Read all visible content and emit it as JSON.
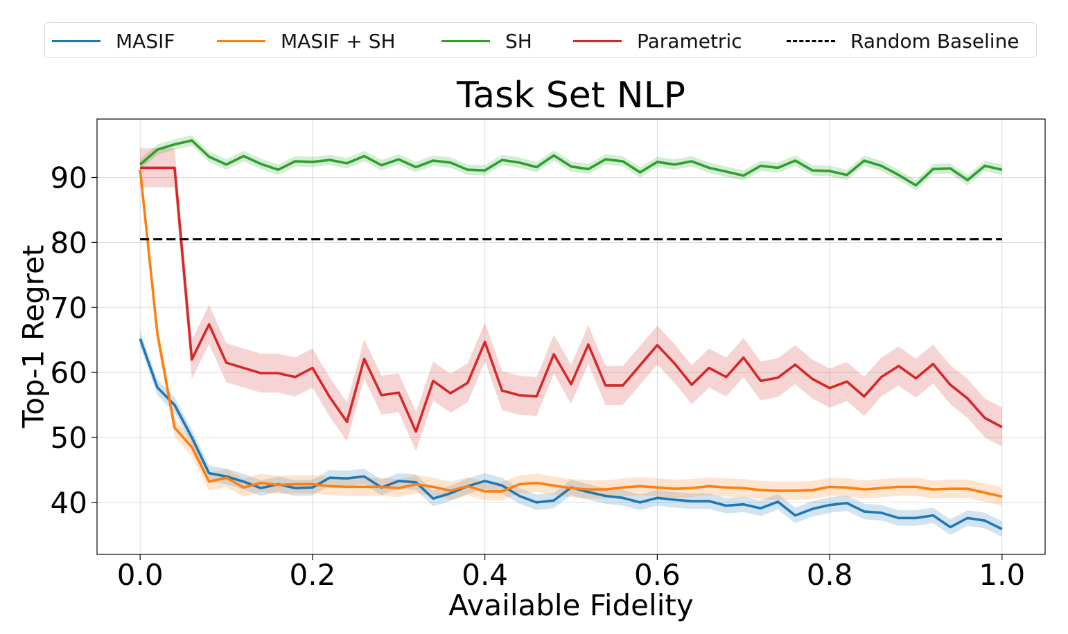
{
  "chart_data": {
    "type": "line",
    "title": "Task Set NLP",
    "xlabel": "Available Fidelity",
    "ylabel": "Top-1 Regret",
    "xlim": [
      -0.05,
      1.05
    ],
    "ylim": [
      32,
      99
    ],
    "x_ticks": [
      "0.0",
      "0.2",
      "0.4",
      "0.6",
      "0.8",
      "1.0"
    ],
    "y_ticks": [
      "40",
      "50",
      "60",
      "70",
      "80",
      "90"
    ],
    "grid": true,
    "legend_position": "top",
    "x": [
      0.0,
      0.02,
      0.04,
      0.06,
      0.08,
      0.1,
      0.12,
      0.14,
      0.16,
      0.18,
      0.2,
      0.22,
      0.24,
      0.26,
      0.28,
      0.3,
      0.32,
      0.34,
      0.36,
      0.38,
      0.4,
      0.42,
      0.44,
      0.46,
      0.48,
      0.5,
      0.52,
      0.54,
      0.56,
      0.58,
      0.6,
      0.62,
      0.64,
      0.66,
      0.68,
      0.7,
      0.72,
      0.74,
      0.76,
      0.78,
      0.8,
      0.82,
      0.84,
      0.86,
      0.88,
      0.9,
      0.92,
      0.94,
      0.96,
      0.98,
      1.0
    ],
    "series": [
      {
        "name": "MASIF",
        "color": "#1f77b4",
        "style": "solid",
        "band": 1.2,
        "values": [
          65.2,
          57.7,
          55.0,
          50.0,
          44.5,
          44.0,
          43.2,
          42.2,
          42.8,
          42.2,
          42.3,
          43.8,
          43.7,
          44.0,
          42.3,
          43.3,
          43.1,
          40.6,
          41.4,
          42.5,
          43.3,
          42.6,
          41.0,
          40.0,
          40.3,
          42.3,
          41.6,
          41.0,
          40.7,
          40.0,
          40.7,
          40.4,
          40.2,
          40.2,
          39.5,
          39.7,
          39.1,
          40.1,
          38.0,
          39.0,
          39.6,
          39.9,
          38.6,
          38.4,
          37.6,
          37.6,
          38.0,
          36.2,
          37.6,
          37.2,
          35.9
        ]
      },
      {
        "name": "MASIF + SH",
        "color": "#ff7f0e",
        "style": "solid",
        "band": 1.4,
        "values": [
          91.2,
          66.0,
          51.5,
          48.5,
          43.2,
          43.8,
          42.3,
          43.0,
          42.7,
          42.8,
          42.8,
          42.5,
          42.4,
          42.4,
          42.4,
          42.2,
          42.8,
          42.4,
          41.8,
          42.5,
          41.7,
          41.7,
          42.8,
          43.0,
          42.6,
          42.2,
          42.0,
          42.0,
          42.3,
          42.5,
          42.3,
          42.1,
          42.2,
          42.5,
          42.3,
          42.2,
          41.9,
          41.8,
          41.8,
          41.9,
          42.4,
          42.3,
          42.0,
          42.2,
          42.4,
          42.4,
          42.0,
          42.1,
          42.1,
          41.5,
          40.9
        ]
      },
      {
        "name": "SH",
        "color": "#2ca02c",
        "style": "solid",
        "band": 0.8,
        "values": [
          92.0,
          94.3,
          95.1,
          95.7,
          93.2,
          92.0,
          93.3,
          92.1,
          91.2,
          92.5,
          92.4,
          92.7,
          92.2,
          93.3,
          91.9,
          92.8,
          91.6,
          92.6,
          92.3,
          91.2,
          91.1,
          92.7,
          92.3,
          91.6,
          93.4,
          91.7,
          91.3,
          92.8,
          92.5,
          90.8,
          92.4,
          92.0,
          92.5,
          91.5,
          90.9,
          90.3,
          91.8,
          91.5,
          92.6,
          91.1,
          91.0,
          90.4,
          92.6,
          91.8,
          90.4,
          88.8,
          91.3,
          91.4,
          89.6,
          91.8,
          91.2
        ]
      },
      {
        "name": "Parametric",
        "color": "#d62728",
        "style": "solid",
        "band": 3.0,
        "values": [
          91.5,
          91.5,
          91.5,
          62.0,
          67.4,
          61.5,
          60.7,
          59.9,
          59.9,
          59.3,
          60.7,
          56.2,
          52.4,
          62.1,
          56.5,
          56.9,
          50.9,
          58.7,
          56.8,
          58.4,
          64.7,
          57.2,
          56.5,
          56.3,
          62.8,
          58.2,
          64.3,
          58.0,
          58.0,
          61.1,
          64.2,
          61.4,
          58.1,
          60.7,
          59.3,
          62.3,
          58.7,
          59.2,
          61.2,
          59.0,
          57.6,
          58.6,
          56.3,
          59.3,
          61.0,
          59.1,
          61.3,
          58.1,
          56.0,
          53.0,
          51.6
        ]
      },
      {
        "name": "Random Baseline",
        "color": "#000000",
        "style": "dashed",
        "band": 0,
        "values": [
          80.5,
          80.5,
          80.5,
          80.5,
          80.5,
          80.5,
          80.5,
          80.5,
          80.5,
          80.5,
          80.5,
          80.5,
          80.5,
          80.5,
          80.5,
          80.5,
          80.5,
          80.5,
          80.5,
          80.5,
          80.5,
          80.5,
          80.5,
          80.5,
          80.5,
          80.5,
          80.5,
          80.5,
          80.5,
          80.5,
          80.5,
          80.5,
          80.5,
          80.5,
          80.5,
          80.5,
          80.5,
          80.5,
          80.5,
          80.5,
          80.5,
          80.5,
          80.5,
          80.5,
          80.5,
          80.5,
          80.5,
          80.5,
          80.5,
          80.5,
          80.5
        ]
      }
    ]
  }
}
